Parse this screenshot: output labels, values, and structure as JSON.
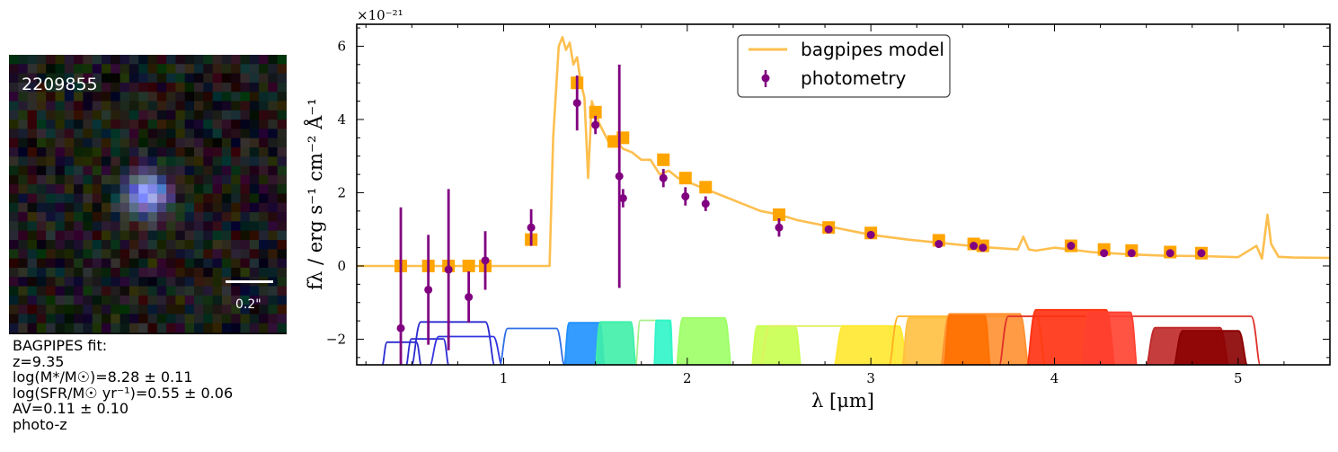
{
  "cutout": {
    "object_id": "2209855",
    "scale_label": "0.2\""
  },
  "fit_info": {
    "header": "BAGPIPES fit:",
    "redshift": "z=9.35",
    "mass": "log(M*/M☉)=8.28 ± 0.11",
    "sfr": "log(SFR/M☉ yr⁻¹)=0.55 ± 0.06",
    "av": "AV=0.11 ± 0.10",
    "method": "photo-z"
  },
  "colors": {
    "model": "#fdbf4f",
    "model_photometry": "#ffa500",
    "photometry": "#800080"
  },
  "chart_data": {
    "type": "line",
    "xlabel": "λ [μm]",
    "ylabel": "fλ / erg s⁻¹ cm⁻² Å⁻¹",
    "y_scale_label": "×10⁻²¹",
    "xlim": [
      0.2,
      5.5
    ],
    "ylim": [
      -2.7,
      6.6
    ],
    "xticks": [
      1,
      2,
      3,
      4,
      5
    ],
    "yticks": [
      -2,
      0,
      2,
      4,
      6
    ],
    "legend": {
      "position": "top-center",
      "entries": [
        "bagpipes model",
        "photometry"
      ]
    },
    "model_spectrum": {
      "name": "bagpipes model",
      "x": [
        0.2,
        1.25,
        1.27,
        1.3,
        1.32,
        1.34,
        1.36,
        1.38,
        1.4,
        1.42,
        1.44,
        1.46,
        1.48,
        1.5,
        1.52,
        1.55,
        1.58,
        1.6,
        1.65,
        1.7,
        1.75,
        1.8,
        1.85,
        1.9,
        1.95,
        2.0,
        2.05,
        2.1,
        2.2,
        2.3,
        2.4,
        2.5,
        2.6,
        2.75,
        3.0,
        3.2,
        3.4,
        3.6,
        3.8,
        3.83,
        3.86,
        3.9,
        4.0,
        4.2,
        4.4,
        4.6,
        4.8,
        5.0,
        5.1,
        5.13,
        5.16,
        5.18,
        5.22,
        5.3,
        5.5
      ],
      "y": [
        0.0,
        0.0,
        3.5,
        6.0,
        6.25,
        5.9,
        6.1,
        5.5,
        5.7,
        5.0,
        4.6,
        2.4,
        4.5,
        4.2,
        3.9,
        3.6,
        3.3,
        3.5,
        3.2,
        3.1,
        2.9,
        2.9,
        2.5,
        2.6,
        2.4,
        2.3,
        2.2,
        2.1,
        1.9,
        1.7,
        1.5,
        1.4,
        1.25,
        1.1,
        0.85,
        0.72,
        0.62,
        0.52,
        0.45,
        0.8,
        0.45,
        0.42,
        0.5,
        0.38,
        0.32,
        0.28,
        0.27,
        0.24,
        0.55,
        0.2,
        1.4,
        0.6,
        0.25,
        0.23,
        0.22
      ]
    },
    "model_photometry": {
      "name": "model photometry",
      "x": [
        0.44,
        0.59,
        0.7,
        0.81,
        0.9,
        1.15,
        1.4,
        1.5,
        1.6,
        1.65,
        1.87,
        1.99,
        2.1,
        2.5,
        2.77,
        3.0,
        3.37,
        3.56,
        3.61,
        4.09,
        4.27,
        4.42,
        4.63,
        4.8
      ],
      "y": [
        0.0,
        0.0,
        0.0,
        0.0,
        0.0,
        0.72,
        5.0,
        4.2,
        3.4,
        3.5,
        2.9,
        2.4,
        2.15,
        1.4,
        1.05,
        0.9,
        0.7,
        0.6,
        0.55,
        0.55,
        0.45,
        0.42,
        0.38,
        0.35
      ]
    },
    "photometry": {
      "name": "photometry",
      "x": [
        0.44,
        0.59,
        0.7,
        0.81,
        0.9,
        1.15,
        1.4,
        1.5,
        1.63,
        1.65,
        1.87,
        1.99,
        2.1,
        2.5,
        2.77,
        3.0,
        3.37,
        3.56,
        3.61,
        4.09,
        4.27,
        4.42,
        4.63,
        4.8
      ],
      "y": [
        -1.7,
        -0.65,
        -0.1,
        -0.85,
        0.15,
        1.05,
        4.45,
        3.85,
        2.45,
        1.85,
        2.4,
        1.9,
        1.7,
        1.05,
        1.0,
        0.85,
        0.6,
        0.55,
        0.5,
        0.55,
        0.35,
        0.35,
        0.35,
        0.35
      ],
      "yerr": [
        3.3,
        1.5,
        2.2,
        0.7,
        0.8,
        0.5,
        0.75,
        0.25,
        3.05,
        0.25,
        0.25,
        0.25,
        0.2,
        0.25,
        0.1,
        0.1,
        0.1,
        0.05,
        0.05,
        0.1,
        0.05,
        0.05,
        0.05,
        0.05
      ]
    },
    "filters": [
      {
        "start": 0.34,
        "end": 0.55,
        "filled": false,
        "color": "#2a2ad0",
        "height": 0.28
      },
      {
        "start": 0.47,
        "end": 0.7,
        "filled": false,
        "color": "#2a2ad0",
        "height": 0.32
      },
      {
        "start": 0.5,
        "end": 0.95,
        "filled": false,
        "color": "#2a2ad0",
        "height": 0.53
      },
      {
        "start": 0.6,
        "end": 0.99,
        "filled": false,
        "color": "#3535e0",
        "height": 0.35
      },
      {
        "start": 0.98,
        "end": 1.33,
        "filled": false,
        "color": "#2f6fe6",
        "height": 0.45
      },
      {
        "start": 1.33,
        "end": 1.55,
        "filled": true,
        "color": "#1e90ff",
        "height": 0.52
      },
      {
        "start": 1.5,
        "end": 1.72,
        "filled": true,
        "color": "#3ff0a8",
        "height": 0.53
      },
      {
        "start": 1.72,
        "end": 1.92,
        "filled": false,
        "color": "#a8f08c",
        "height": 0.55
      },
      {
        "start": 1.82,
        "end": 1.92,
        "filled": true,
        "color": "#30f5c8",
        "height": 0.55
      },
      {
        "start": 1.94,
        "end": 2.24,
        "filled": true,
        "color": "#9cff66",
        "height": 0.58
      },
      {
        "start": 2.35,
        "end": 2.62,
        "filled": true,
        "color": "#c8ff50",
        "height": 0.48
      },
      {
        "start": 2.4,
        "end": 3.14,
        "filled": false,
        "color": "#e0f060",
        "height": 0.48
      },
      {
        "start": 2.8,
        "end": 3.2,
        "filled": true,
        "color": "#ffe830",
        "height": 0.48
      },
      {
        "start": 3.1,
        "end": 3.95,
        "filled": false,
        "color": "#ffb020",
        "height": 0.6
      },
      {
        "start": 3.17,
        "end": 3.48,
        "filled": true,
        "color": "#ffc040",
        "height": 0.58
      },
      {
        "start": 3.38,
        "end": 3.86,
        "filled": true,
        "color": "#ff9030",
        "height": 0.63
      },
      {
        "start": 3.4,
        "end": 3.65,
        "filled": true,
        "color": "#ff7000",
        "height": 0.61
      },
      {
        "start": 3.7,
        "end": 5.12,
        "filled": false,
        "color": "#e0302a",
        "height": 0.6
      },
      {
        "start": 3.85,
        "end": 4.33,
        "filled": true,
        "color": "#ff3010",
        "height": 0.68
      },
      {
        "start": 4.15,
        "end": 4.45,
        "filled": true,
        "color": "#ff4030",
        "height": 0.65
      },
      {
        "start": 4.5,
        "end": 4.95,
        "filled": true,
        "color": "#c02828",
        "height": 0.46
      },
      {
        "start": 4.65,
        "end": 5.05,
        "filled": true,
        "color": "#8b0000",
        "height": 0.42
      }
    ]
  }
}
